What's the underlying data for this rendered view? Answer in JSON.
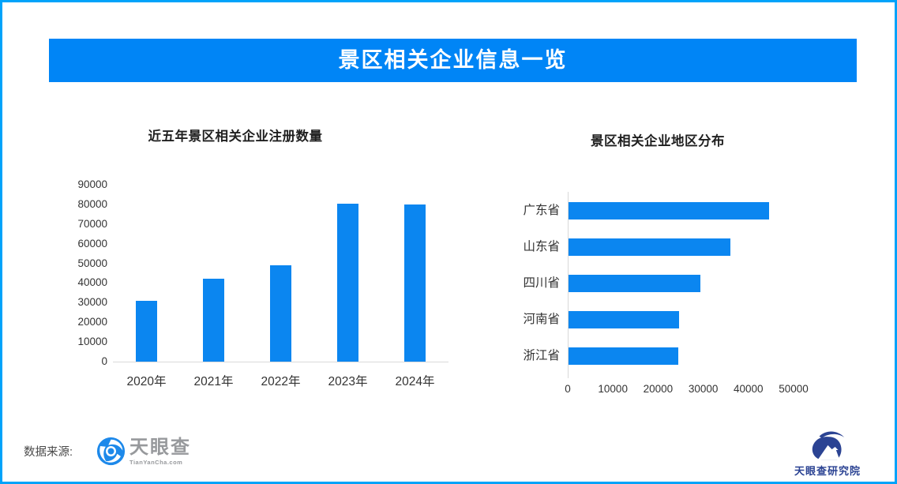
{
  "banner": {
    "title": "景区相关企业信息一览"
  },
  "colors": {
    "page_border": "#00a3fa",
    "banner_bg": "#0085f6",
    "banner_text": "#ffffff",
    "bar_fill": "#0b86f0",
    "axis_line": "#d9d9d9",
    "tick_text": "#333333",
    "title_text": "#1f1f1f",
    "source_text": "#4a4a4a",
    "tyc_gray": "#97999c",
    "tyc_icon_blue": "#1d89ea",
    "institute_navy": "#2b4393"
  },
  "footer": {
    "source_label": "数据来源:",
    "tianyancha": {
      "name": "天眼查",
      "domain": "TianYanCha.com"
    },
    "institute": {
      "name": "天眼查研究院"
    }
  },
  "chart_data": [
    {
      "type": "bar",
      "orientation": "vertical",
      "title": "近五年景区相关企业注册数量",
      "categories": [
        "2020年",
        "2021年",
        "2022年",
        "2023年",
        "2024年"
      ],
      "values": [
        31000,
        42000,
        49000,
        80500,
        80000
      ],
      "xlabel": "",
      "ylabel": "",
      "ylim": [
        0,
        90000
      ],
      "yticks": [
        0,
        10000,
        20000,
        30000,
        40000,
        50000,
        60000,
        70000,
        80000,
        90000
      ],
      "grid": false,
      "legend": false
    },
    {
      "type": "bar",
      "orientation": "horizontal",
      "title": "景区相关企业地区分布",
      "categories": [
        "广东省",
        "山东省",
        "四川省",
        "河南省",
        "浙江省"
      ],
      "values": [
        44400,
        35800,
        29200,
        24400,
        24300
      ],
      "xlabel": "",
      "ylabel": "",
      "xlim": [
        0,
        50000
      ],
      "xticks": [
        0,
        10000,
        20000,
        30000,
        40000,
        50000
      ],
      "grid": false,
      "legend": false
    }
  ]
}
